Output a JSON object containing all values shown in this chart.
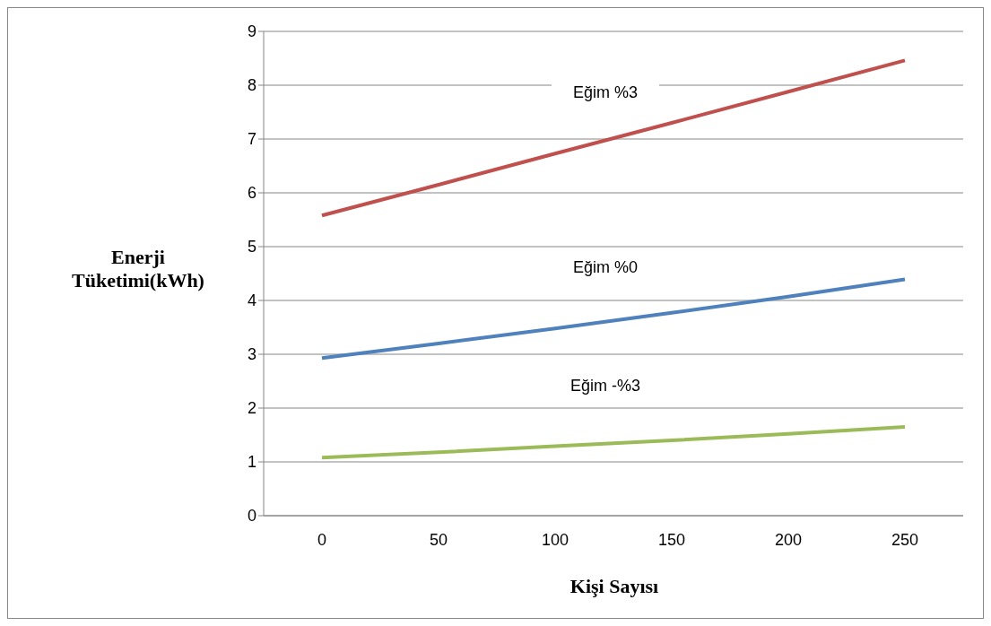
{
  "chart_data": {
    "type": "line",
    "xlabel": "Kişi Sayısı",
    "ylabel": "Enerji Tüketimi(kWh)",
    "categories": [
      "0",
      "50",
      "100",
      "150",
      "200",
      "250"
    ],
    "series": [
      {
        "name": "Eğim %3",
        "color": "#c0504d",
        "values": [
          5.58,
          6.15,
          6.73,
          7.3,
          7.88,
          8.46
        ]
      },
      {
        "name": "Eğim %0",
        "color": "#4f81bd",
        "values": [
          2.93,
          3.2,
          3.48,
          3.77,
          4.07,
          4.39
        ]
      },
      {
        "name": "Eğim -%3",
        "color": "#9bbb59",
        "values": [
          1.08,
          1.18,
          1.29,
          1.4,
          1.52,
          1.65
        ]
      }
    ],
    "ylim": [
      0,
      9
    ],
    "yticks": [
      0,
      1,
      2,
      3,
      4,
      5,
      6,
      7,
      8,
      9
    ],
    "grid": "y",
    "legend": false,
    "marker": "none",
    "line_style": "solid"
  }
}
